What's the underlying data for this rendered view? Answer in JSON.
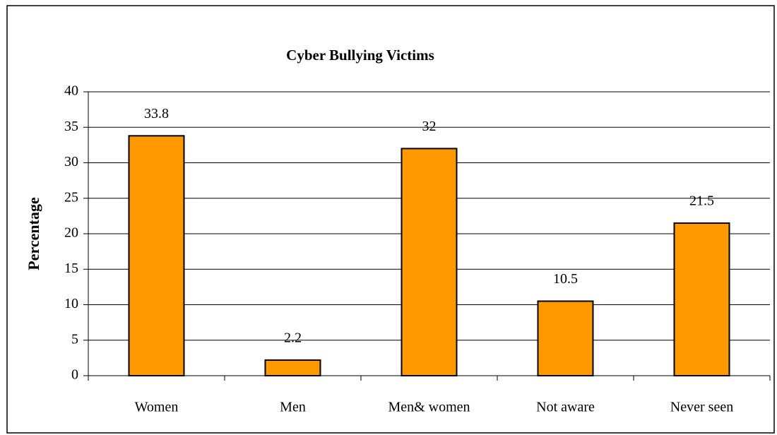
{
  "chart_data": {
    "type": "bar",
    "title": "Cyber Bullying Victims",
    "y_label": "Percentage",
    "categories": [
      "Women",
      "Men",
      "Men& women",
      "Not aware",
      "Never seen"
    ],
    "values": [
      33.8,
      2.2,
      32,
      10.5,
      21.5
    ],
    "color": "#ff9900",
    "ylim": [
      0,
      40
    ],
    "yticks": [
      0,
      5,
      10,
      15,
      20,
      25,
      30,
      35,
      40
    ],
    "grid": true
  }
}
